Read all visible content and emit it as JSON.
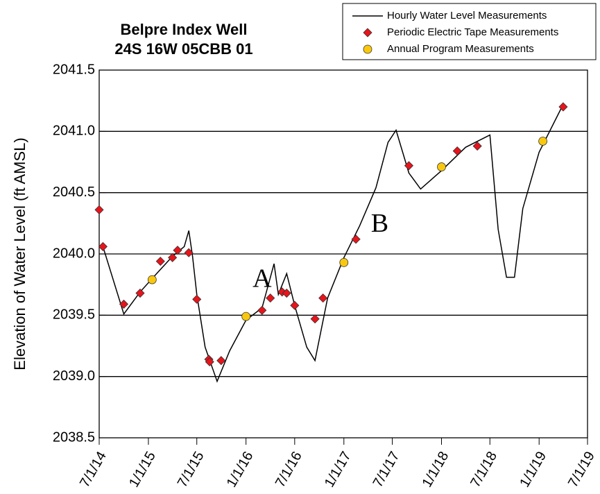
{
  "chart_data": {
    "type": "line",
    "title": "Belpre Index Well",
    "subtitle": "24S 16W 05CBB 01",
    "y_label": "Elevation of Water Level (ft AMSL)",
    "xlim": [
      "2014-07-01",
      "2019-07-01"
    ],
    "xticks": [
      {
        "value": "2014-07-01",
        "label": "7/1/14"
      },
      {
        "value": "2015-01-01",
        "label": "1/1/15"
      },
      {
        "value": "2015-07-01",
        "label": "7/1/15"
      },
      {
        "value": "2016-01-01",
        "label": "1/1/16"
      },
      {
        "value": "2016-07-01",
        "label": "7/1/16"
      },
      {
        "value": "2017-01-01",
        "label": "1/1/17"
      },
      {
        "value": "2017-07-01",
        "label": "7/1/17"
      },
      {
        "value": "2018-01-01",
        "label": "1/1/18"
      },
      {
        "value": "2018-07-01",
        "label": "7/1/18"
      },
      {
        "value": "2019-01-01",
        "label": "1/1/19"
      },
      {
        "value": "2019-07-01",
        "label": "7/1/19"
      }
    ],
    "ylim": [
      2038.5,
      2041.5
    ],
    "yticks": [
      2038.5,
      {
        "value": 2039,
        "label": "2039.0"
      },
      2039.5,
      {
        "value": 2040,
        "label": "2040.0"
      },
      2040.5,
      {
        "value": 2041,
        "label": "2041.0"
      },
      2041.5
    ],
    "grid": true,
    "legend": "top-right",
    "series": [
      {
        "name": "Hourly Water Level Measurements",
        "type": "line",
        "color": "#000000",
        "x": [
          "2014-07-15",
          "2014-10-01",
          "2014-12-01",
          "2015-02-01",
          "2015-04-01",
          "2015-05-15",
          "2015-06-01",
          "2015-06-15",
          "2015-07-01",
          "2015-08-01",
          "2015-09-15",
          "2015-11-01",
          "2016-01-01",
          "2016-03-01",
          "2016-04-15",
          "2016-05-01",
          "2016-06-01",
          "2016-07-01",
          "2016-08-15",
          "2016-09-15",
          "2016-11-01",
          "2017-01-01",
          "2017-03-01",
          "2017-05-01",
          "2017-06-15",
          "2017-07-15",
          "2017-09-01",
          "2017-10-15",
          "2018-01-01",
          "2018-04-01",
          "2018-07-01",
          "2018-08-01",
          "2018-09-01",
          "2018-10-01",
          "2018-11-01",
          "2019-01-01",
          "2019-04-01"
        ],
        "values": [
          2040.06,
          2039.51,
          2039.69,
          2039.84,
          2039.98,
          2040.06,
          2040.19,
          2039.98,
          2039.67,
          2039.24,
          2038.96,
          2039.21,
          2039.46,
          2039.56,
          2039.92,
          2039.67,
          2039.84,
          2039.58,
          2039.24,
          2039.13,
          2039.64,
          2039.97,
          2040.23,
          2040.54,
          2040.91,
          2041.01,
          2040.66,
          2040.53,
          2040.68,
          2040.87,
          2040.97,
          2040.2,
          2039.81,
          2039.81,
          2040.37,
          2040.83,
          2041.22
        ]
      },
      {
        "name": "Periodic Electric Tape Measurements",
        "type": "scatter",
        "marker": "diamond",
        "color": "#e8141b",
        "x": [
          "2014-07-01",
          "2014-07-15",
          "2014-10-01",
          "2014-12-01",
          "2015-02-15",
          "2015-04-01",
          "2015-04-20",
          "2015-06-01",
          "2015-07-01",
          "2015-08-15",
          "2015-08-18",
          "2015-09-30",
          "2016-03-01",
          "2016-04-01",
          "2016-05-15",
          "2016-06-01",
          "2016-07-01",
          "2016-09-15",
          "2016-10-15",
          "2017-02-15",
          "2017-09-01",
          "2018-03-01",
          "2018-05-15",
          "2019-04-01"
        ],
        "values": [
          2040.36,
          2040.06,
          2039.59,
          2039.68,
          2039.94,
          2039.97,
          2040.03,
          2040.01,
          2039.63,
          2039.14,
          2039.12,
          2039.13,
          2039.54,
          2039.64,
          2039.69,
          2039.68,
          2039.58,
          2039.47,
          2039.64,
          2040.12,
          2040.72,
          2040.84,
          2040.88,
          2041.2
        ]
      },
      {
        "name": "Annual Program Measurements",
        "type": "scatter",
        "marker": "circle",
        "color": "#f9c80e",
        "x": [
          "2015-01-15",
          "2016-01-01",
          "2017-01-01",
          "2018-01-01",
          "2019-01-15"
        ],
        "values": [
          2039.79,
          2039.49,
          2039.93,
          2040.71,
          2040.92
        ]
      }
    ],
    "annotations": [
      {
        "text": "A",
        "x": "2016-03-01",
        "y": 2039.78
      },
      {
        "text": "B",
        "x": "2017-05-15",
        "y": 2040.23
      }
    ]
  }
}
